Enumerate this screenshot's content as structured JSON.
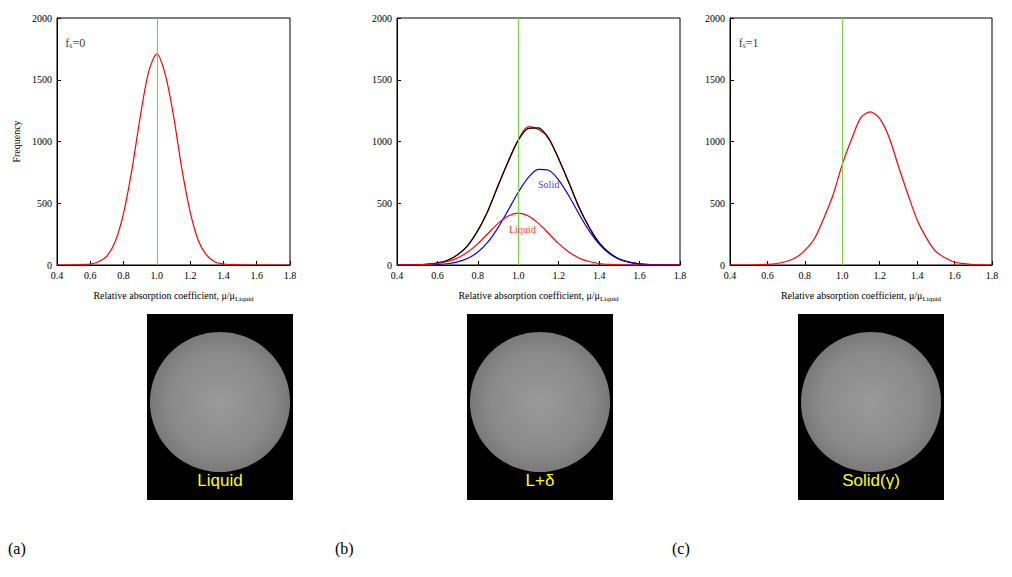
{
  "chart_data": [
    {
      "type": "line",
      "panel_label": "(a)",
      "image_label": "Liquid",
      "xlabel": {
        "text": "Relative absorption coefficient, μ/μ",
        "sub": "Liquid"
      },
      "ylabel": "Frequency",
      "xlim": [
        0.4,
        1.8
      ],
      "ylim": [
        0,
        2000
      ],
      "xticks": [
        0.4,
        0.6,
        0.8,
        {
          "value": 1,
          "label": "1.0"
        },
        1.2,
        1.4,
        1.6,
        1.8
      ],
      "yticks": [
        0,
        500,
        1000,
        1500,
        2000
      ],
      "reference_line": {
        "x": 1,
        "color": "#7fd04a"
      },
      "annotations": [
        {
          "text": "f",
          "sub": "s",
          "suffix": "=0",
          "x": 0.42,
          "y": 1800,
          "color": "#000000"
        }
      ],
      "x": [
        0.4,
        0.45,
        0.5,
        0.55,
        0.6,
        0.65,
        0.7,
        0.75,
        0.8,
        0.85,
        0.9,
        0.95,
        1.0,
        1.05,
        1.1,
        1.15,
        1.2,
        1.25,
        1.3,
        1.35,
        1.4,
        1.45,
        1.5,
        1.55,
        1.6,
        1.65,
        1.7,
        1.75,
        1.8
      ],
      "series": [
        {
          "color": "#ff0000",
          "values": [
            0,
            0,
            1,
            3,
            8,
            26,
            72,
            190,
            420,
            770,
            1200,
            1560,
            1710,
            1545,
            1210,
            780,
            430,
            195,
            78,
            25,
            8,
            3,
            1,
            0,
            0,
            0,
            0,
            0,
            0
          ]
        }
      ]
    },
    {
      "type": "line",
      "panel_label": "(b)",
      "image_label": "L+δ",
      "xlabel": {
        "text": "Relative absorption coefficient, μ/μ",
        "sub": "Liquid"
      },
      "xlim": [
        0.4,
        1.8
      ],
      "ylim": [
        0,
        2000
      ],
      "xticks": [
        0.4,
        0.6,
        0.8,
        {
          "value": 1,
          "label": "1.0"
        },
        1.2,
        1.4,
        1.6,
        1.8
      ],
      "yticks": [
        0,
        500,
        1000,
        1500,
        2000
      ],
      "reference_line": {
        "x": 1,
        "color": "#7fd04a"
      },
      "annotations": [
        {
          "text": "Solid",
          "x": 1.15,
          "y": 650,
          "color": "#0000ff"
        },
        {
          "text": "Liquid",
          "x": 1.02,
          "y": 290,
          "color": "#ff0000"
        }
      ],
      "x": [
        0.4,
        0.45,
        0.5,
        0.55,
        0.6,
        0.65,
        0.7,
        0.75,
        0.8,
        0.85,
        0.9,
        0.95,
        1.0,
        1.05,
        1.1,
        1.15,
        1.2,
        1.25,
        1.3,
        1.35,
        1.4,
        1.45,
        1.5,
        1.55,
        1.6,
        1.65,
        1.7,
        1.75,
        1.8
      ],
      "series": [
        {
          "color": "#ff0000",
          "values": [
            0,
            2,
            3,
            7,
            18,
            36,
            85,
            155,
            282,
            438,
            648,
            832,
            1015,
            1120,
            1098,
            1030,
            855,
            672,
            465,
            310,
            178,
            102,
            45,
            24,
            8,
            4,
            1,
            0,
            0
          ]
        },
        {
          "color": "#000000",
          "values": [
            0,
            1,
            2,
            6,
            16,
            38,
            82,
            159,
            278,
            442,
            640,
            841,
            1009,
            1106,
            1111,
            1022,
            861,
            666,
            471,
            306,
            181,
            98,
            48,
            22,
            9,
            3,
            1,
            0,
            0
          ]
        },
        {
          "color": "#0000ff",
          "values": [
            0,
            0,
            0,
            1,
            4,
            10,
            25,
            54,
            105,
            187,
            303,
            444,
            589,
            709,
            774,
            767,
            688,
            561,
            414,
            278,
            169,
            93,
            46,
            21,
            9,
            3,
            1,
            0,
            0
          ]
        },
        {
          "color": "#ff0000",
          "values": [
            0,
            1,
            2,
            5,
            12,
            28,
            57,
            105,
            173,
            255,
            337,
            397,
            420,
            397,
            337,
            255,
            173,
            105,
            57,
            28,
            12,
            5,
            2,
            1,
            0,
            0,
            0,
            0,
            0
          ]
        }
      ]
    },
    {
      "type": "line",
      "panel_label": "(c)",
      "image_label": "Solid(γ)",
      "xlabel": {
        "text": "Relative absorption coefficient, μ/μ",
        "sub": "Liquid"
      },
      "xlim": [
        0.4,
        1.8
      ],
      "ylim": [
        0,
        2000
      ],
      "xticks": [
        0.4,
        0.6,
        0.8,
        {
          "value": 1,
          "label": "1.0"
        },
        1.2,
        1.4,
        1.6,
        1.8
      ],
      "yticks": [
        0,
        500,
        1000,
        1500,
        2000
      ],
      "reference_line": {
        "x": 1,
        "color": "#7fd04a"
      },
      "annotations": [
        {
          "text": "f",
          "sub": "s",
          "suffix": "=1",
          "x": 0.42,
          "y": 1800,
          "color": "#000000"
        }
      ],
      "x": [
        0.4,
        0.45,
        0.5,
        0.55,
        0.6,
        0.65,
        0.7,
        0.75,
        0.8,
        0.85,
        0.9,
        0.95,
        1.0,
        1.05,
        1.1,
        1.15,
        1.2,
        1.25,
        1.3,
        1.35,
        1.4,
        1.45,
        1.5,
        1.55,
        1.6,
        1.65,
        1.7,
        1.75,
        1.8
      ],
      "series": [
        {
          "color": "#ff0000",
          "values": [
            0,
            0,
            0,
            2,
            5,
            12,
            28,
            58,
            118,
            210,
            375,
            565,
            815,
            1020,
            1195,
            1240,
            1185,
            1035,
            800,
            575,
            365,
            218,
            110,
            58,
            22,
            11,
            4,
            1,
            0
          ]
        }
      ]
    }
  ]
}
